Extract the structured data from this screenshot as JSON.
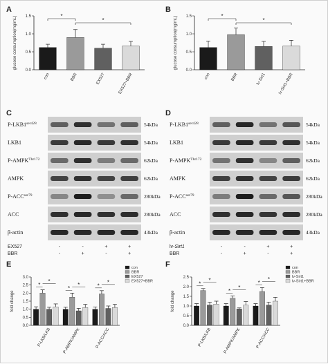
{
  "panels": {
    "A": "A",
    "B": "B",
    "C": "C",
    "D": "D",
    "E": "E",
    "F": "F"
  },
  "significance_mark": "*",
  "colors": {
    "con": "#1a1a1a",
    "bbr": "#9a9a9a",
    "inhib": "#606060",
    "combo": "#dadada",
    "blot_bg": "#cfcfcf"
  },
  "blots": {
    "C": {
      "rows": [
        {
          "label": "P-LKB1",
          "sup": "ser428",
          "kda": "54kDa"
        },
        {
          "label": "LKB1",
          "sup": "",
          "kda": "54kDa"
        },
        {
          "label": "P-AMPK",
          "sup": "Thr172",
          "kda": "62kDa"
        },
        {
          "label": "AMPK",
          "sup": "",
          "kda": "62kDa"
        },
        {
          "label": "P-ACC",
          "sup": "ser79",
          "kda": "280kDa"
        },
        {
          "label": "ACC",
          "sup": "",
          "kda": "280kDa"
        },
        {
          "label": "β-actin",
          "sup": "",
          "kda": "43kDa"
        }
      ],
      "treatments": [
        {
          "name": "EX527",
          "italic_part": "",
          "signs": [
            "-",
            "-",
            "+",
            "+"
          ]
        },
        {
          "name": "BBR",
          "italic_part": "",
          "signs": [
            "-",
            "+",
            "-",
            "+"
          ]
        }
      ]
    },
    "D": {
      "rows": [
        {
          "label": "P-LKB1",
          "sup": "ser428",
          "kda": "54kDa"
        },
        {
          "label": "LKB1",
          "sup": "",
          "kda": "54kDa"
        },
        {
          "label": "P-AMPK",
          "sup": "Thr172",
          "kda": "62kDa"
        },
        {
          "label": "AMPK",
          "sup": "",
          "kda": "62kDa"
        },
        {
          "label": "P-ACC",
          "sup": "ser79",
          "kda": "280kDa"
        },
        {
          "label": "ACC",
          "sup": "",
          "kda": "280kDa"
        },
        {
          "label": "β-actin",
          "sup": "",
          "kda": "43kDa"
        }
      ],
      "treatments": [
        {
          "name": "lv-",
          "italic_part": "Sirt1",
          "signs": [
            "-",
            "-",
            "+",
            "+"
          ]
        },
        {
          "name": "BBR",
          "italic_part": "",
          "signs": [
            "-",
            "+",
            "-",
            "+"
          ]
        }
      ]
    }
  },
  "chart_data": [
    {
      "panel": "A",
      "type": "bar",
      "ylabel": "glucose consumption(mg/mL)",
      "ylim": [
        0,
        1.5
      ],
      "yticks": [
        "0.0",
        "0.5",
        "1.0",
        "1.5"
      ],
      "categories": [
        "con",
        "BBR",
        "EX527",
        "EX527+BBR"
      ],
      "values": [
        0.62,
        0.9,
        0.6,
        0.66
      ],
      "errors": [
        0.09,
        0.22,
        0.11,
        0.13
      ],
      "color_keys": [
        "con",
        "bbr",
        "inhib",
        "combo"
      ],
      "significance": [
        [
          0,
          1
        ],
        [
          1,
          3
        ]
      ]
    },
    {
      "panel": "B",
      "type": "bar",
      "ylabel": "glucose consumption(mg/mL)",
      "ylim": [
        0,
        1.5
      ],
      "yticks": [
        "0.0",
        "0.5",
        "1.0",
        "1.5"
      ],
      "categories": [
        "con",
        "BBR",
        "lv-Sirt1",
        "lv-Sirt1+BBR"
      ],
      "values": [
        0.62,
        0.98,
        0.65,
        0.66
      ],
      "errors": [
        0.18,
        0.18,
        0.14,
        0.16
      ],
      "color_keys": [
        "con",
        "bbr",
        "inhib",
        "combo"
      ],
      "significance": [
        [
          0,
          1
        ],
        [
          1,
          3
        ]
      ]
    },
    {
      "panel": "E",
      "type": "bar",
      "ylabel": "fold change",
      "ylim": [
        0,
        3.0
      ],
      "yticks": [
        "0.0",
        "0.5",
        "1.0",
        "1.5",
        "2.0",
        "2.5",
        "3.0"
      ],
      "categories": [
        "P-LKB/LKB",
        "P-AMPK/AMPK",
        "P-ACC/ACC"
      ],
      "legend": [
        "con",
        "BBR",
        "EX527",
        "EX527+BBR"
      ],
      "legend_position": "top-right",
      "color_keys": [
        "con",
        "bbr",
        "inhib",
        "combo"
      ],
      "series": [
        {
          "name": "con",
          "values": [
            1.0,
            1.0,
            1.0
          ],
          "errors": [
            0.15,
            0.12,
            0.14
          ]
        },
        {
          "name": "BBR",
          "values": [
            2.0,
            1.75,
            1.95
          ],
          "errors": [
            0.2,
            0.25,
            0.2
          ]
        },
        {
          "name": "EX527",
          "values": [
            1.0,
            0.9,
            1.05
          ],
          "errors": [
            0.12,
            0.15,
            0.15
          ]
        },
        {
          "name": "EX527+BBR",
          "values": [
            1.15,
            1.1,
            1.1
          ],
          "errors": [
            0.18,
            0.2,
            0.2
          ]
        }
      ]
    },
    {
      "panel": "F",
      "type": "bar",
      "ylabel": "fold change",
      "ylim": [
        0,
        2.5
      ],
      "yticks": [
        "0.0",
        "0.5",
        "1.0",
        "1.5",
        "2.0",
        "2.5"
      ],
      "categories": [
        "P-LKB/LKB",
        "P-AMPK/AMPK",
        "P-ACC/ACC"
      ],
      "legend": [
        "con",
        "BBR",
        "lv-Sirt1",
        "lv-Sirt1+BBR"
      ],
      "legend_position": "top-right",
      "color_keys": [
        "con",
        "bbr",
        "inhib",
        "combo"
      ],
      "series": [
        {
          "name": "con",
          "values": [
            1.0,
            1.0,
            1.0
          ],
          "errors": [
            0.12,
            0.12,
            0.12
          ]
        },
        {
          "name": "BBR",
          "values": [
            1.8,
            1.4,
            1.75
          ],
          "errors": [
            0.1,
            0.12,
            0.2
          ]
        },
        {
          "name": "lv-Sirt1",
          "values": [
            1.05,
            0.85,
            1.05
          ],
          "errors": [
            0.15,
            0.05,
            0.15
          ]
        },
        {
          "name": "lv-Sirt1+BBR",
          "values": [
            1.1,
            1.05,
            1.25
          ],
          "errors": [
            0.15,
            0.18,
            0.2
          ]
        }
      ]
    }
  ]
}
